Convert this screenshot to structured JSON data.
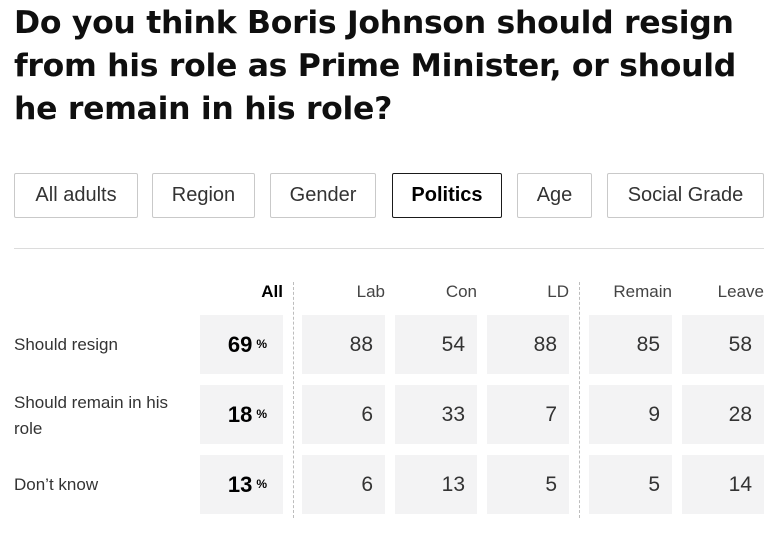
{
  "title": "Do you think Boris Johnson should resign from his role as Prime Minister, or should he remain in his role?",
  "tabs": [
    {
      "label": "All adults",
      "active": false
    },
    {
      "label": "Region",
      "active": false
    },
    {
      "label": "Gender",
      "active": false
    },
    {
      "label": "Politics",
      "active": true
    },
    {
      "label": "Age",
      "active": false
    },
    {
      "label": "Social Grade",
      "active": false
    }
  ],
  "table": {
    "columns": [
      "All",
      "Lab",
      "Con",
      "LD",
      "Remain",
      "Leave"
    ],
    "percent_symbol": "%",
    "rows": [
      {
        "label": "Should resign",
        "all": "69",
        "values": [
          "88",
          "54",
          "88",
          "85",
          "58"
        ]
      },
      {
        "label": "Should remain in his role",
        "all": "18",
        "values": [
          "6",
          "33",
          "7",
          "9",
          "28"
        ]
      },
      {
        "label": "Don’t know",
        "all": "13",
        "values": [
          "6",
          "13",
          "5",
          "5",
          "14"
        ]
      }
    ]
  }
}
